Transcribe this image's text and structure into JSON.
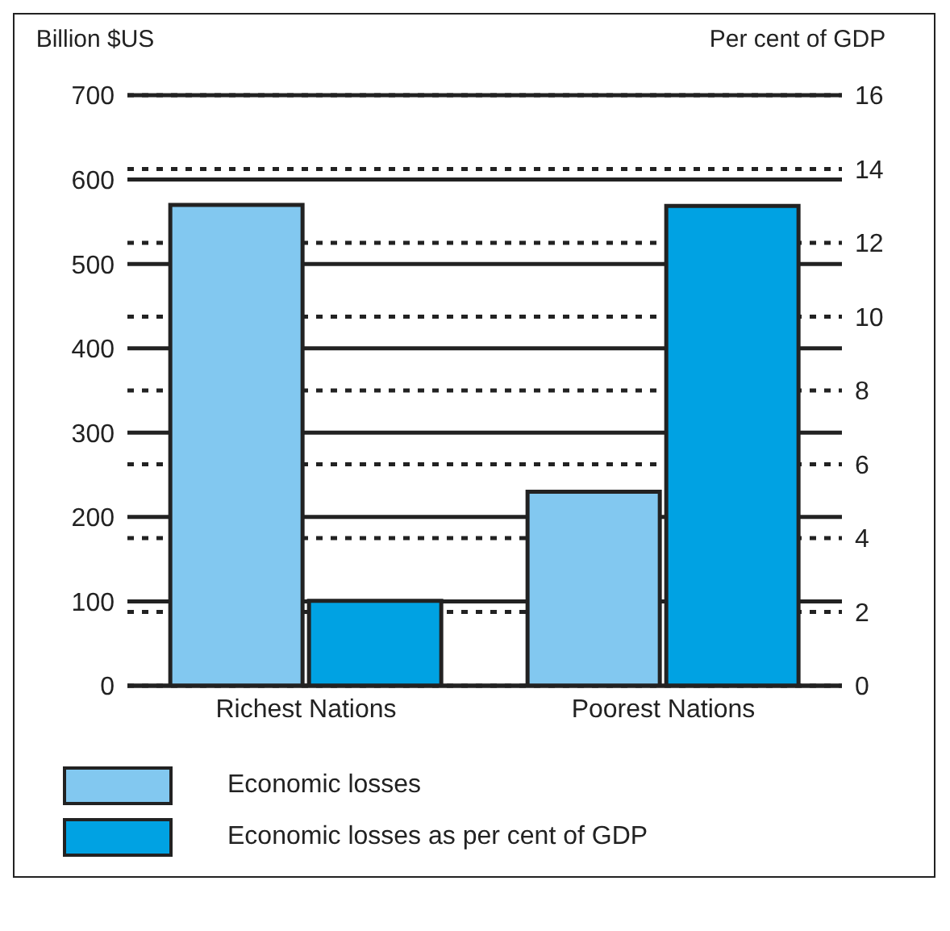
{
  "chart_data": {
    "type": "bar",
    "ylabel": "Billion $US",
    "y2label": "Per cent of GDP",
    "categories": [
      "Richest Nations",
      "Poorest Nations"
    ],
    "series": [
      {
        "name": "Economic losses",
        "color": "#82c8f0",
        "values": [
          570,
          230
        ]
      },
      {
        "name": "Economic losses as per cent of GDP",
        "color": "#00a2e3",
        "values": [
          2.3,
          13.0
        ],
        "axis": "y2"
      }
    ],
    "ylim": [
      0,
      700
    ],
    "yticks": [
      0,
      100,
      200,
      300,
      400,
      500,
      600,
      700
    ],
    "y2lim": [
      0,
      16
    ],
    "y2ticks": [
      0,
      2,
      4,
      6,
      8,
      10,
      12,
      14,
      16
    ],
    "grid": true,
    "legend": "bottom"
  }
}
